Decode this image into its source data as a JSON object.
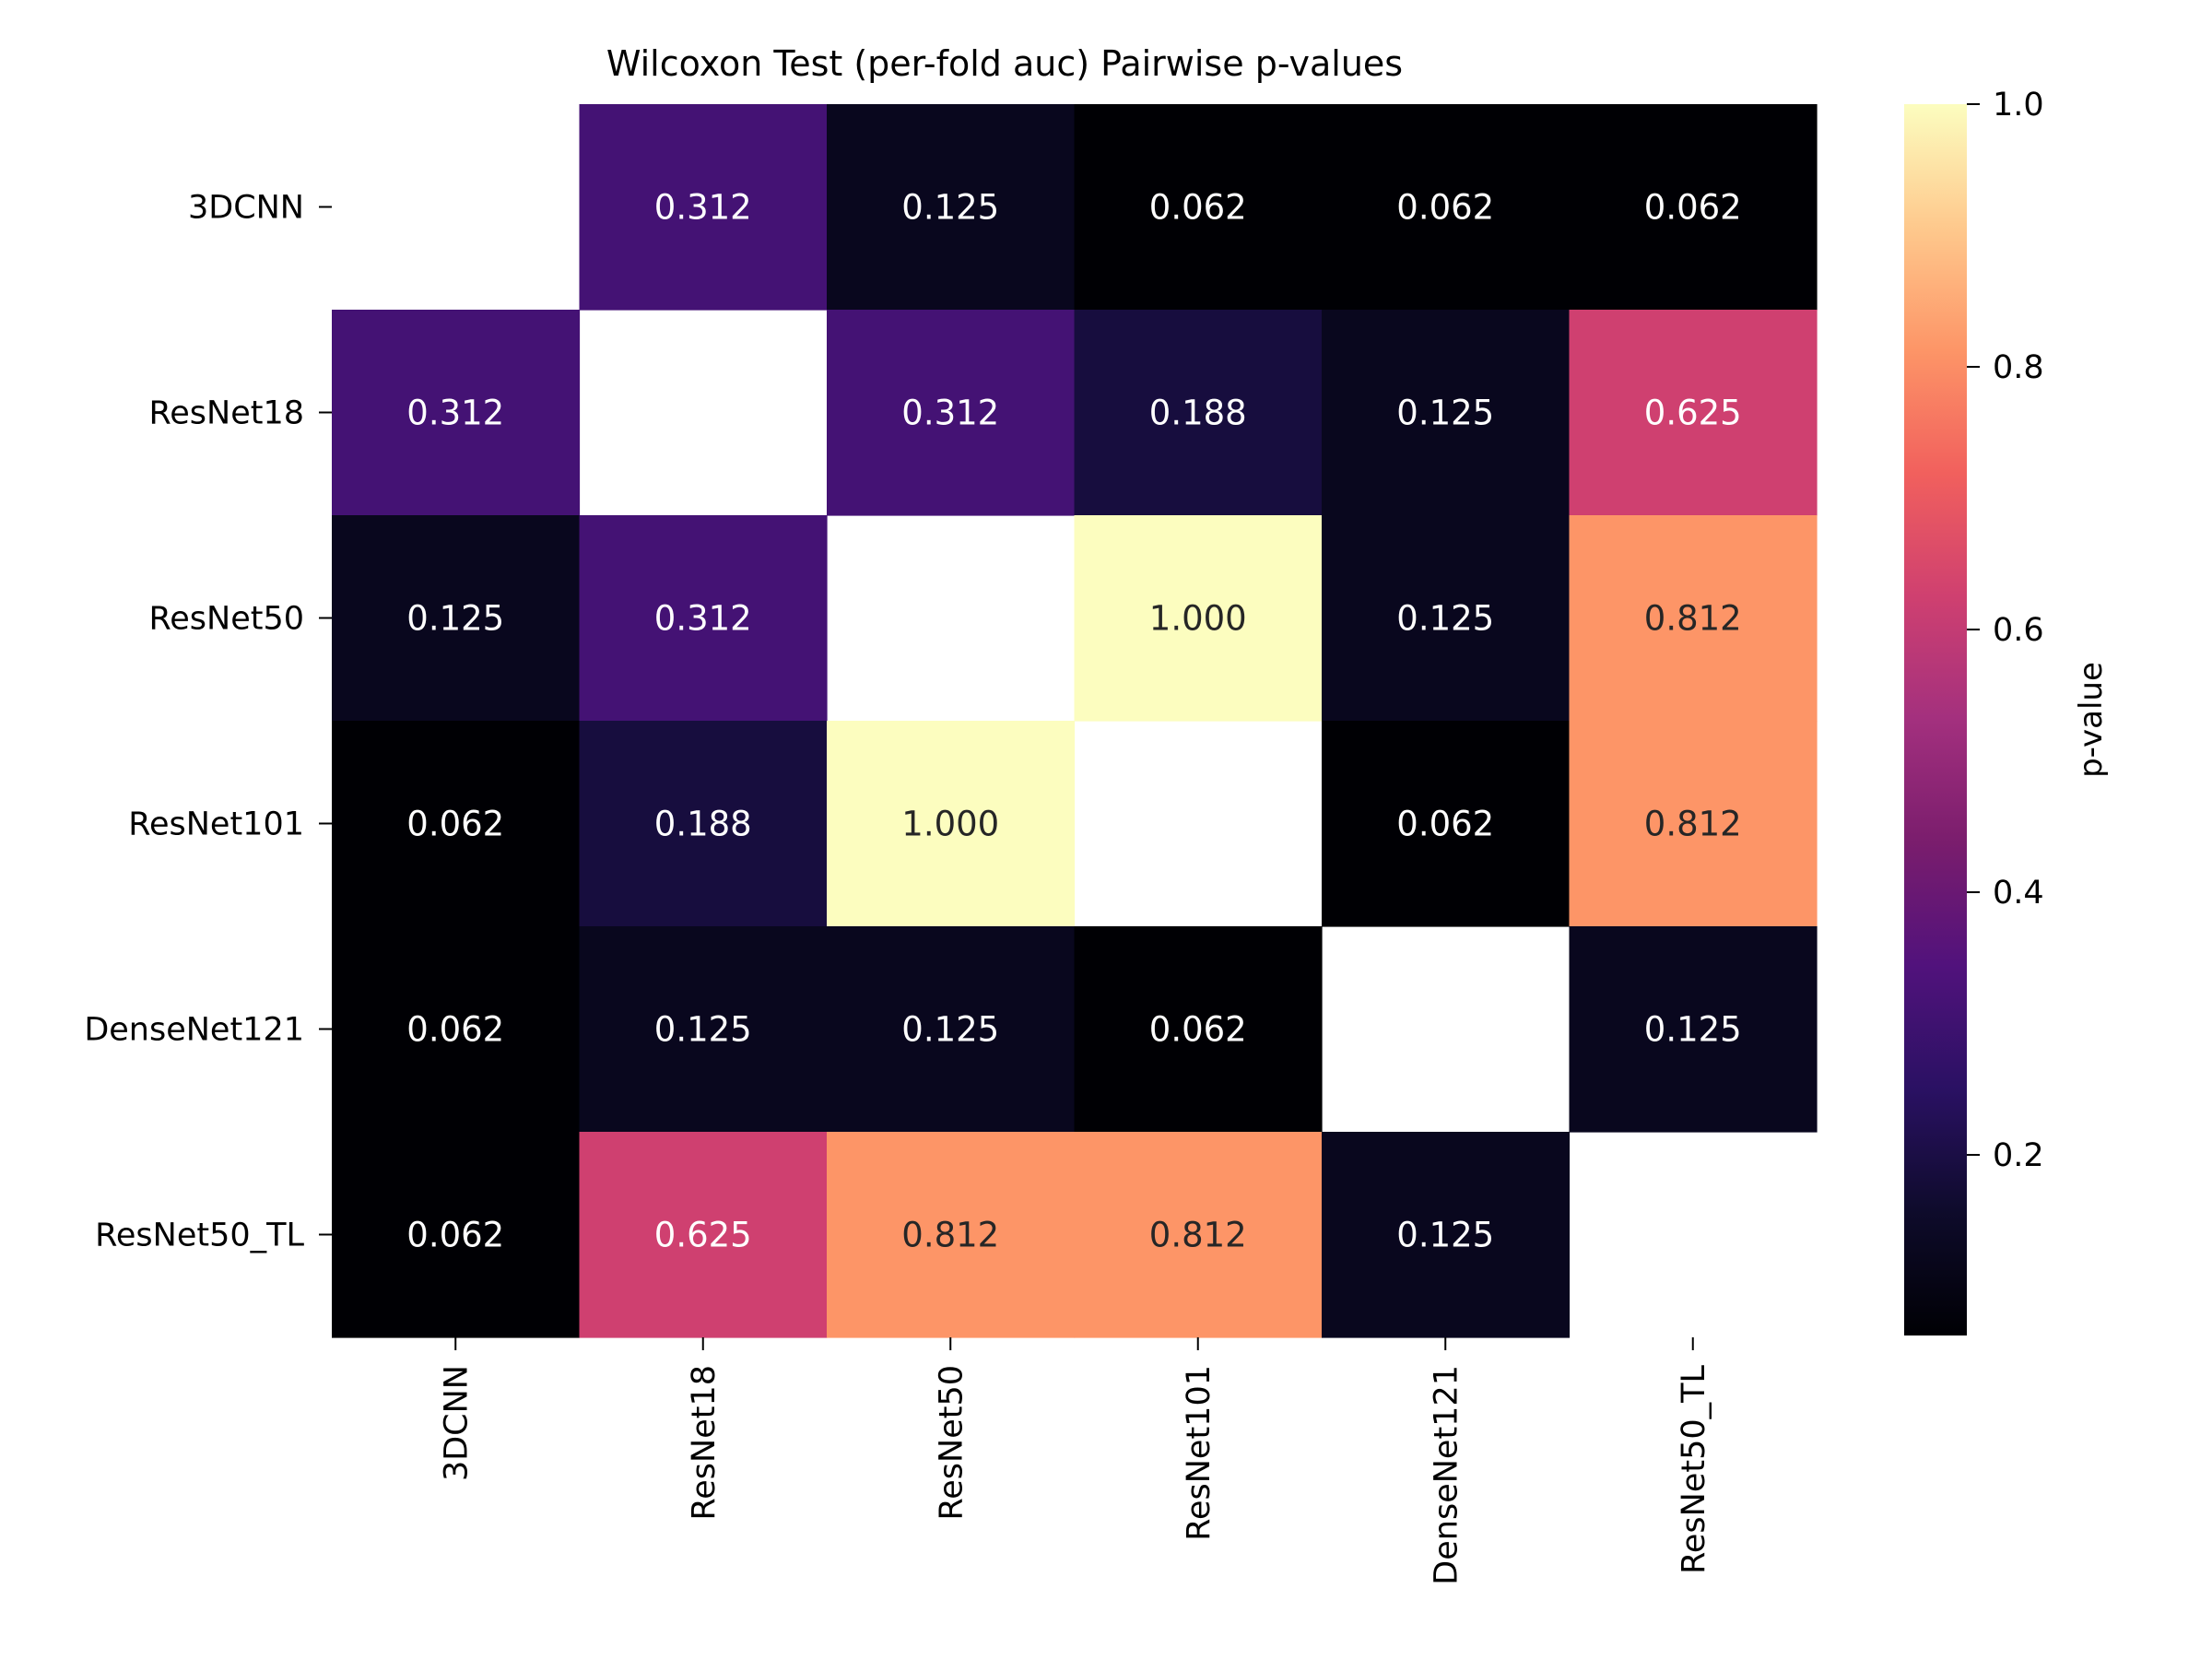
{
  "chart_data": {
    "type": "heatmap",
    "title": "Wilcoxon Test (per-fold auc) Pairwise p-values",
    "row_labels": [
      "3DCNN",
      "ResNet18",
      "ResNet50",
      "ResNet101",
      "DenseNet121",
      "ResNet50_TL"
    ],
    "col_labels": [
      "3DCNN",
      "ResNet18",
      "ResNet50",
      "ResNet101",
      "DenseNet121",
      "ResNet50_TL"
    ],
    "values": [
      [
        null,
        0.312,
        0.125,
        0.062,
        0.062,
        0.062
      ],
      [
        0.312,
        null,
        0.312,
        0.188,
        0.125,
        0.625
      ],
      [
        0.125,
        0.312,
        null,
        1.0,
        0.125,
        0.812
      ],
      [
        0.062,
        0.188,
        1.0,
        null,
        0.062,
        0.812
      ],
      [
        0.062,
        0.125,
        0.125,
        0.062,
        null,
        0.125
      ],
      [
        0.062,
        0.625,
        0.812,
        0.812,
        0.125,
        null
      ]
    ],
    "value_format": "3 decimals",
    "colormap": "magma",
    "colorbar": {
      "label": "p-value",
      "range": [
        0.0625,
        1.0
      ],
      "ticks": [
        "0.2",
        "0.4",
        "0.6",
        "0.8",
        "1.0"
      ],
      "tick_values": [
        0.2,
        0.4,
        0.6,
        0.8,
        1.0
      ]
    },
    "masked_diagonal": true,
    "grid": false
  }
}
